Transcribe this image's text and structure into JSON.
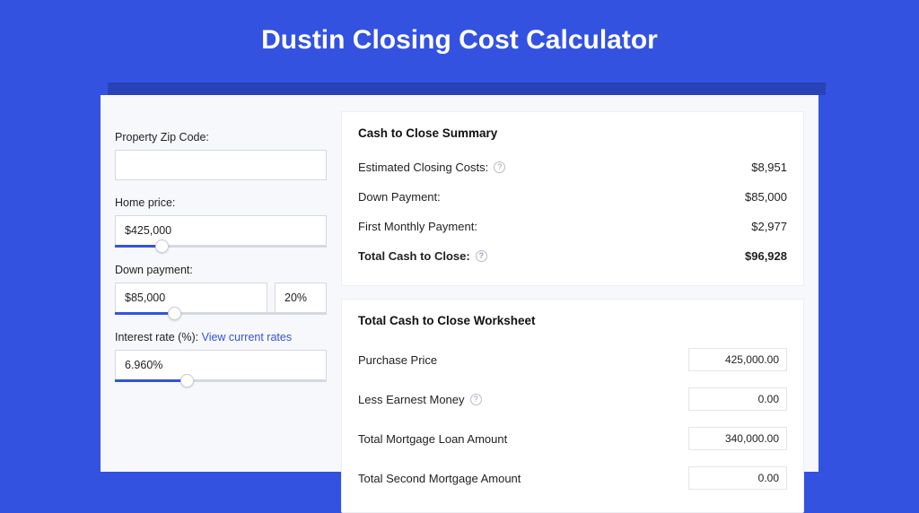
{
  "page": {
    "title": "Dustin Closing Cost Calculator",
    "bg_color": "#3452e0",
    "card_bg": "#f7f8fb"
  },
  "form": {
    "zip": {
      "label": "Property Zip Code:",
      "value": ""
    },
    "home_price": {
      "label": "Home price:",
      "value": "$425,000",
      "slider_pct": 22
    },
    "down_payment": {
      "label": "Down payment:",
      "value": "$85,000",
      "pct_value": "20%",
      "slider_pct": 28
    },
    "interest_rate": {
      "label": "Interest rate (%):",
      "link_text": "View current rates",
      "value": "6.960%",
      "slider_pct": 34
    }
  },
  "summary": {
    "heading": "Cash to Close Summary",
    "rows": [
      {
        "label": "Estimated Closing Costs:",
        "value": "$8,951",
        "help": true,
        "bold": false
      },
      {
        "label": "Down Payment:",
        "value": "$85,000",
        "help": false,
        "bold": false
      },
      {
        "label": "First Monthly Payment:",
        "value": "$2,977",
        "help": false,
        "bold": false
      },
      {
        "label": "Total Cash to Close:",
        "value": "$96,928",
        "help": true,
        "bold": true
      }
    ]
  },
  "worksheet": {
    "heading": "Total Cash to Close Worksheet",
    "rows": [
      {
        "label": "Purchase Price",
        "value": "425,000.00",
        "help": false
      },
      {
        "label": "Less Earnest Money",
        "value": "0.00",
        "help": true
      },
      {
        "label": "Total Mortgage Loan Amount",
        "value": "340,000.00",
        "help": false
      },
      {
        "label": "Total Second Mortgage Amount",
        "value": "0.00",
        "help": false
      }
    ]
  }
}
